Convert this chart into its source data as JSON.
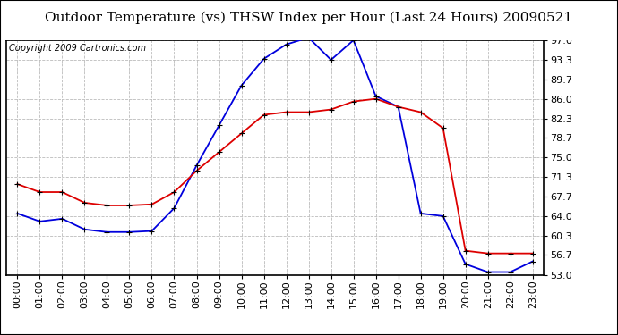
{
  "title": "Outdoor Temperature (vs) THSW Index per Hour (Last 24 Hours) 20090521",
  "copyright": "Copyright 2009 Cartronics.com",
  "x_labels": [
    "00:00",
    "01:00",
    "02:00",
    "03:00",
    "04:00",
    "05:00",
    "06:00",
    "07:00",
    "08:00",
    "09:00",
    "10:00",
    "11:00",
    "12:00",
    "13:00",
    "14:00",
    "15:00",
    "16:00",
    "17:00",
    "18:00",
    "19:00",
    "20:00",
    "21:00",
    "22:00",
    "23:00"
  ],
  "temp_red": [
    70.0,
    68.5,
    68.5,
    66.5,
    66.0,
    66.0,
    66.2,
    68.5,
    72.5,
    76.0,
    79.5,
    83.0,
    83.5,
    83.5,
    84.0,
    85.5,
    86.0,
    84.5,
    83.5,
    80.5,
    57.5,
    57.0,
    57.0,
    57.0
  ],
  "thsw_blue": [
    64.5,
    63.0,
    63.5,
    61.5,
    61.0,
    61.0,
    61.2,
    65.5,
    73.5,
    81.0,
    88.5,
    93.5,
    96.2,
    97.5,
    93.3,
    97.0,
    86.5,
    84.5,
    64.5,
    64.0,
    55.0,
    53.5,
    53.5,
    55.5
  ],
  "y_ticks": [
    53.0,
    56.7,
    60.3,
    64.0,
    67.7,
    71.3,
    75.0,
    78.7,
    82.3,
    86.0,
    89.7,
    93.3,
    97.0
  ],
  "y_min": 53.0,
  "y_max": 97.0,
  "bg_color": "#ffffff",
  "plot_bg": "#ffffff",
  "line_color_red": "#dd0000",
  "line_color_blue": "#0000dd",
  "grid_color": "#bbbbbb",
  "title_fontsize": 11,
  "copyright_fontsize": 7,
  "tick_fontsize": 8
}
